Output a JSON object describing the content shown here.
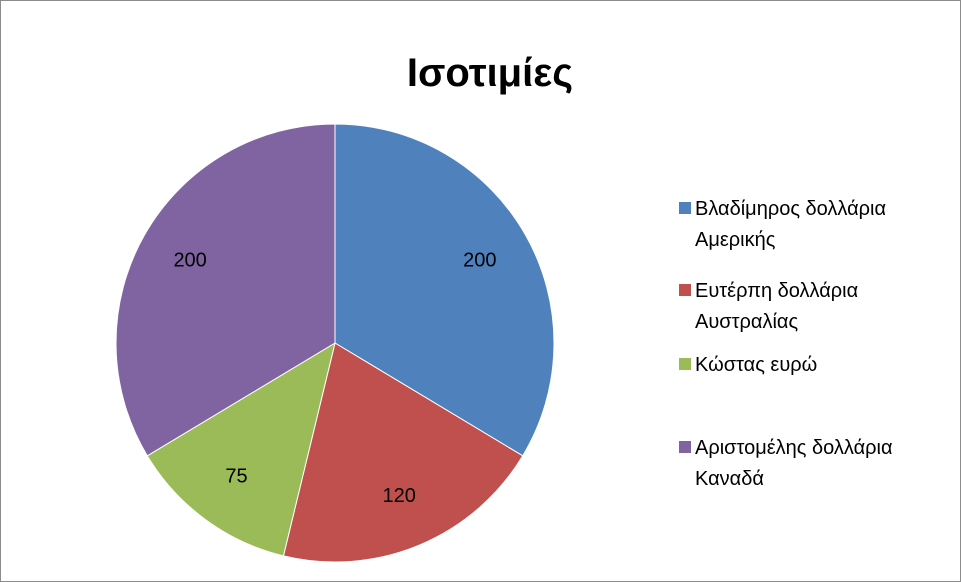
{
  "chart_data": {
    "type": "pie",
    "title": "Ισοτιμίες",
    "categories": [
      "Βλαδίμηρος δολλάρια Αμερικής",
      "Ευτέρπη δολλάρια Αυστραλίας",
      "Κώστας ευρώ",
      "Αριστομέλης δολλάρια Καναδά"
    ],
    "values": [
      200,
      120,
      75,
      200
    ],
    "colors": [
      "#4f81bd",
      "#c0504d",
      "#9bbb59",
      "#8064a2"
    ],
    "legend": "right"
  }
}
